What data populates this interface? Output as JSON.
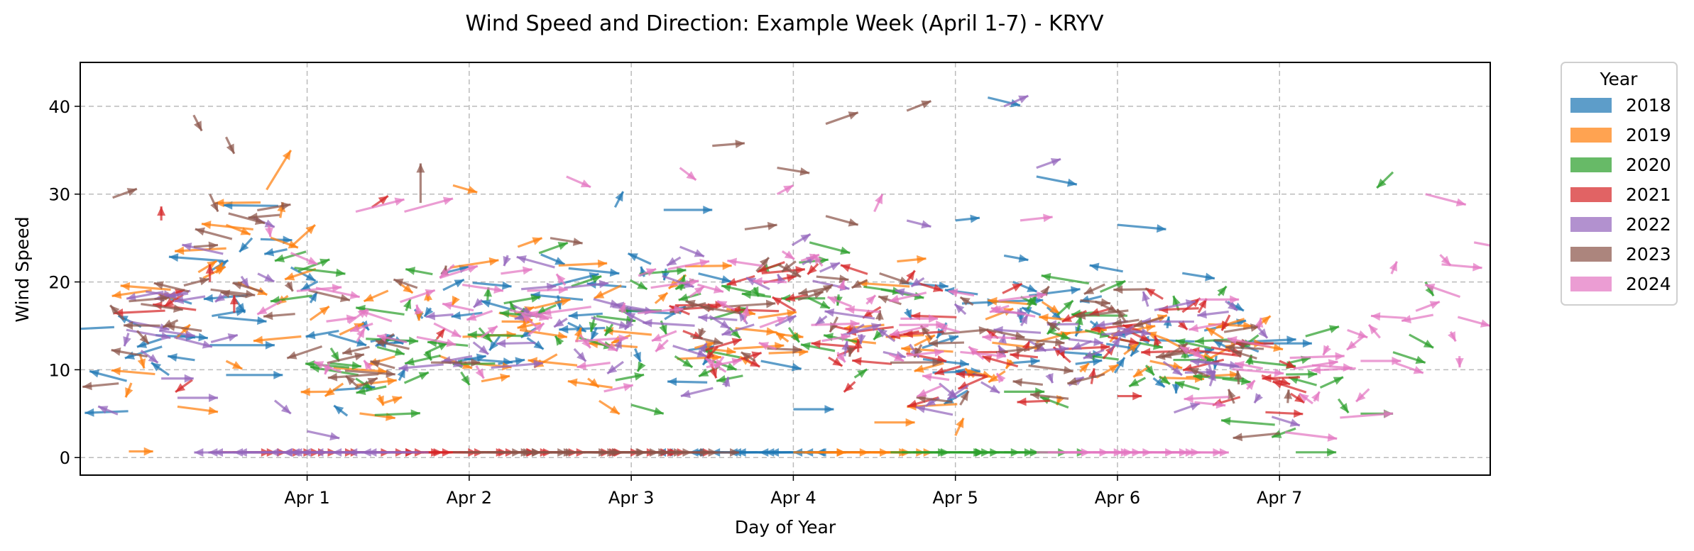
{
  "chart_data": {
    "type": "quiver",
    "title": "Wind Speed and Direction: Example Week (April 1-7) - KRYV",
    "xlabel": "Day of Year",
    "ylabel": "Wind Speed",
    "xlim": [
      -1.4,
      7.3
    ],
    "ylim": [
      -2,
      45
    ],
    "x_ticks": [
      {
        "value": 0,
        "label": "Apr 1"
      },
      {
        "value": 1,
        "label": "Apr 2"
      },
      {
        "value": 2,
        "label": "Apr 3"
      },
      {
        "value": 3,
        "label": "Apr 4"
      },
      {
        "value": 4,
        "label": "Apr 5"
      },
      {
        "value": 5,
        "label": "Apr 6"
      },
      {
        "value": 6,
        "label": "Apr 7"
      }
    ],
    "y_ticks": [
      0,
      10,
      20,
      30,
      40
    ],
    "grid": true,
    "legend_title": "Year",
    "legend_position": "outside-right-top",
    "series": [
      {
        "name": "2018",
        "color": "#1f77b4",
        "active_range": [
          -1.2,
          5.9
        ],
        "calm_range": [
          2.5,
          3.6
        ],
        "calm_dir": -1,
        "samples": 120,
        "points": [
          [
            -0.9,
            13.5,
            -0.3,
            -0.9
          ],
          [
            -0.6,
            12.8,
            0.8,
            0.0
          ],
          [
            -0.55,
            16.0,
            0.6,
            -0.5
          ],
          [
            -0.5,
            9.4,
            0.7,
            0.0
          ],
          [
            1.5,
            19.5,
            0.6,
            1.4
          ],
          [
            1.9,
            28.5,
            0.1,
            1.8
          ],
          [
            2.2,
            28.2,
            0.6,
            0.0
          ],
          [
            2.8,
            11.0,
            0.5,
            -0.9
          ],
          [
            3.0,
            5.5,
            0.5,
            0.0
          ],
          [
            4.2,
            41.0,
            0.4,
            -0.9
          ],
          [
            4.0,
            27.0,
            0.3,
            0.3
          ],
          [
            4.5,
            32.0,
            0.5,
            -0.9
          ],
          [
            4.3,
            23.0,
            0.3,
            -0.5
          ],
          [
            5.0,
            26.5,
            0.6,
            -0.5
          ],
          [
            5.4,
            21.0,
            0.4,
            -0.6
          ],
          [
            5.9,
            13.0,
            0.6,
            0.0
          ]
        ]
      },
      {
        "name": "2019",
        "color": "#ff7f0e",
        "active_range": [
          -1.1,
          5.9
        ],
        "calm_range": [
          3.0,
          3.5
        ],
        "calm_dir": 1,
        "samples": 115,
        "points": [
          [
            -1.1,
            0.7,
            0.3,
            0.0
          ],
          [
            -0.8,
            5.8,
            0.5,
            -0.6
          ],
          [
            -0.5,
            11.0,
            0.2,
            -0.9
          ],
          [
            -0.5,
            26.5,
            0.3,
            -1.1
          ],
          [
            -0.25,
            30.5,
            0.3,
            4.5
          ],
          [
            -0.1,
            24.0,
            0.3,
            2.5
          ],
          [
            0.2,
            14.0,
            0.3,
            1.3
          ],
          [
            0.5,
            19.0,
            -0.3,
            -1.2
          ],
          [
            0.9,
            31.0,
            0.3,
            -0.8
          ],
          [
            1.3,
            24.0,
            0.3,
            1.0
          ],
          [
            3.5,
            4.0,
            0.5,
            0.0
          ],
          [
            5.2,
            11.0,
            0.4,
            -0.8
          ],
          [
            5.7,
            13.0,
            0.4,
            0.0
          ],
          [
            4.0,
            2.5,
            0.1,
            2.0
          ]
        ]
      },
      {
        "name": "2020",
        "color": "#2ca02c",
        "active_range": [
          -0.1,
          6.4
        ],
        "calm_range": [
          3.6,
          4.4
        ],
        "calm_dir": 1,
        "samples": 115,
        "points": [
          [
            0.3,
            9.0,
            0.2,
            -1.2
          ],
          [
            0.6,
            8.5,
            0.3,
            1.2
          ],
          [
            2.0,
            6.0,
            0.4,
            -1.0
          ],
          [
            2.5,
            11.0,
            0.3,
            -1.0
          ],
          [
            3.1,
            24.5,
            0.5,
            -1.2
          ],
          [
            4.3,
            7.5,
            0.5,
            0.0
          ],
          [
            4.8,
            14.5,
            0.3,
            -0.7
          ],
          [
            5.8,
            11.0,
            0.6,
            -0.6
          ],
          [
            6.5,
            5.0,
            0.4,
            0.0
          ],
          [
            6.1,
            0.6,
            0.5,
            0.0
          ],
          [
            6.7,
            32.5,
            -0.2,
            -1.8
          ],
          [
            6.9,
            20.0,
            0.1,
            -1.6
          ],
          [
            6.8,
            14.0,
            0.3,
            -1.5
          ],
          [
            6.7,
            12.0,
            0.4,
            -1.2
          ]
        ]
      },
      {
        "name": "2021",
        "color": "#d62728",
        "active_range": [
          -0.9,
          6.2
        ],
        "calm_range": [
          -0.6,
          2.2
        ],
        "calm_dir": 1,
        "samples": 125,
        "points": [
          [
            -0.9,
            27.0,
            0.0,
            1.6
          ],
          [
            -0.6,
            20.0,
            0.0,
            2.0
          ],
          [
            -0.45,
            16.5,
            0.0,
            2.0
          ],
          [
            0.4,
            28.5,
            0.2,
            1.3
          ],
          [
            0.8,
            13.5,
            0.1,
            1.2
          ],
          [
            3.7,
            20.0,
            0.1,
            1.3
          ],
          [
            3.4,
            12.0,
            0.0,
            1.5
          ],
          [
            5.0,
            7.0,
            0.3,
            0.0
          ],
          [
            5.5,
            16.5,
            0.1,
            1.6
          ],
          [
            6.0,
            11.0,
            0.2,
            -0.8
          ]
        ]
      },
      {
        "name": "2022",
        "color": "#9467bd",
        "active_range": [
          -1.2,
          6.0
        ],
        "calm_range": [
          -0.3,
          0.8
        ],
        "calm_dir": -1,
        "samples": 125,
        "points": [
          [
            -1.1,
            15.5,
            0.5,
            -0.9
          ],
          [
            -0.9,
            9.0,
            0.4,
            0.0
          ],
          [
            -0.8,
            6.8,
            0.5,
            0.0
          ],
          [
            -0.2,
            6.5,
            0.2,
            -1.5
          ],
          [
            0.0,
            3.0,
            0.4,
            -0.8
          ],
          [
            2.3,
            24.0,
            0.3,
            -1.1
          ],
          [
            3.7,
            27.0,
            0.3,
            -0.7
          ],
          [
            4.3,
            40.0,
            0.3,
            1.2
          ],
          [
            4.5,
            33.0,
            0.3,
            1.0
          ],
          [
            4.9,
            14.0,
            0.4,
            0.3
          ],
          [
            5.5,
            11.0,
            0.5,
            -0.6
          ]
        ]
      },
      {
        "name": "2023",
        "color": "#8c564b",
        "active_range": [
          -1.2,
          6.1
        ],
        "calm_range": [
          0.9,
          2.3
        ],
        "calm_dir": 1,
        "samples": 115,
        "points": [
          [
            -1.2,
            29.6,
            0.3,
            1.0
          ],
          [
            -1.1,
            17.8,
            0.5,
            0.4
          ],
          [
            -0.7,
            24.0,
            0.3,
            0.2
          ],
          [
            -0.7,
            39.0,
            0.1,
            -1.8
          ],
          [
            -0.6,
            30.0,
            0.1,
            -2.0
          ],
          [
            -0.5,
            36.5,
            0.1,
            -1.9
          ],
          [
            0.7,
            29.0,
            0.0,
            4.5
          ],
          [
            1.5,
            25.0,
            0.4,
            -0.6
          ],
          [
            2.5,
            35.5,
            0.4,
            0.3
          ],
          [
            2.9,
            33.0,
            0.4,
            -0.6
          ],
          [
            3.2,
            38.0,
            0.4,
            1.3
          ],
          [
            3.7,
            39.5,
            0.3,
            1.1
          ],
          [
            2.7,
            26.0,
            0.4,
            0.5
          ],
          [
            3.2,
            27.5,
            0.4,
            -1.0
          ]
        ]
      },
      {
        "name": "2024",
        "color": "#e377c2",
        "active_range": [
          -0.2,
          7.2
        ],
        "calm_range": [
          4.5,
          5.4
        ],
        "calm_dir": 1,
        "samples": 130,
        "points": [
          [
            0.3,
            28.0,
            0.6,
            1.4
          ],
          [
            0.6,
            28.0,
            0.6,
            1.5
          ],
          [
            1.6,
            32.0,
            0.3,
            -1.2
          ],
          [
            2.3,
            33.0,
            0.2,
            -1.4
          ],
          [
            3.5,
            28.0,
            0.1,
            2.0
          ],
          [
            4.4,
            27.0,
            0.4,
            0.4
          ],
          [
            6.9,
            30.0,
            0.5,
            -1.2
          ],
          [
            7.2,
            24.5,
            0.4,
            -0.7
          ],
          [
            7.0,
            22.0,
            0.5,
            -0.4
          ],
          [
            7.1,
            16.0,
            0.4,
            -1.0
          ],
          [
            5.5,
            18.0,
            0.5,
            0.0
          ],
          [
            6.2,
            10.5,
            0.5,
            -0.3
          ],
          [
            6.5,
            11.0,
            0.5,
            0.0
          ],
          [
            2.9,
            30.0,
            0.2,
            1.0
          ]
        ]
      }
    ]
  }
}
